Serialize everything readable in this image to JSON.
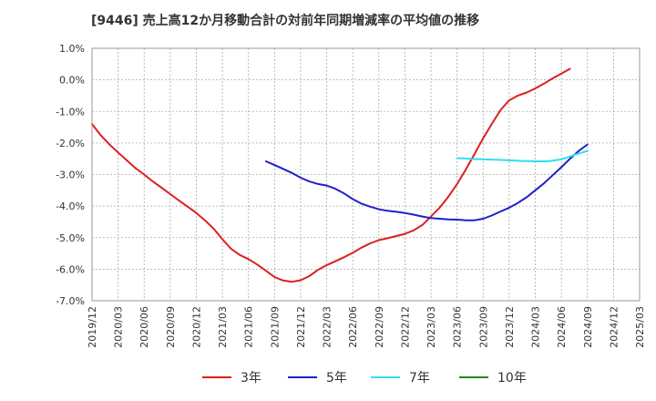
{
  "chart_data": {
    "type": "line",
    "title": "[9446]  売上高12か月移動合計の対前年同期増減率の平均値の推移",
    "xlabel": "",
    "ylabel": "",
    "ylim": [
      -7.0,
      1.0
    ],
    "yticks": [
      "1.0%",
      "0.0%",
      "-1.0%",
      "-2.0%",
      "-3.0%",
      "-4.0%",
      "-5.0%",
      "-6.0%",
      "-7.0%"
    ],
    "ytick_values": [
      1,
      0,
      -1,
      -2,
      -3,
      -4,
      -5,
      -6,
      -7
    ],
    "x_categories": [
      "2019/12",
      "2020/03",
      "2020/06",
      "2020/09",
      "2020/12",
      "2021/03",
      "2021/06",
      "2021/09",
      "2021/12",
      "2022/03",
      "2022/06",
      "2022/09",
      "2022/12",
      "2023/03",
      "2023/06",
      "2023/09",
      "2023/12",
      "2024/03",
      "2024/06",
      "2024/09",
      "2024/12",
      "2025/03"
    ],
    "grid": true,
    "legend_position": "bottom",
    "series": [
      {
        "name": "3年",
        "color": "#dd1f1f",
        "points": [
          [
            0,
            -1.4
          ],
          [
            0.33,
            -1.75
          ],
          [
            0.67,
            -2.05
          ],
          [
            1,
            -2.3
          ],
          [
            1.33,
            -2.55
          ],
          [
            1.67,
            -2.8
          ],
          [
            2,
            -3.0
          ],
          [
            2.33,
            -3.22
          ],
          [
            2.67,
            -3.42
          ],
          [
            3,
            -3.62
          ],
          [
            3.33,
            -3.82
          ],
          [
            3.67,
            -4.02
          ],
          [
            4,
            -4.22
          ],
          [
            4.33,
            -4.45
          ],
          [
            4.67,
            -4.72
          ],
          [
            5,
            -5.05
          ],
          [
            5.33,
            -5.35
          ],
          [
            5.67,
            -5.55
          ],
          [
            6,
            -5.68
          ],
          [
            6.33,
            -5.85
          ],
          [
            6.67,
            -6.05
          ],
          [
            7,
            -6.25
          ],
          [
            7.33,
            -6.36
          ],
          [
            7.67,
            -6.4
          ],
          [
            8,
            -6.35
          ],
          [
            8.33,
            -6.22
          ],
          [
            8.67,
            -6.02
          ],
          [
            9,
            -5.87
          ],
          [
            9.33,
            -5.75
          ],
          [
            9.67,
            -5.62
          ],
          [
            10,
            -5.48
          ],
          [
            10.33,
            -5.32
          ],
          [
            10.67,
            -5.18
          ],
          [
            11,
            -5.08
          ],
          [
            11.33,
            -5.02
          ],
          [
            11.67,
            -4.95
          ],
          [
            12,
            -4.88
          ],
          [
            12.33,
            -4.77
          ],
          [
            12.67,
            -4.6
          ],
          [
            13,
            -4.33
          ],
          [
            13.33,
            -4.05
          ],
          [
            13.67,
            -3.7
          ],
          [
            14,
            -3.3
          ],
          [
            14.33,
            -2.85
          ],
          [
            14.67,
            -2.35
          ],
          [
            15,
            -1.85
          ],
          [
            15.33,
            -1.4
          ],
          [
            15.67,
            -0.95
          ],
          [
            16,
            -0.65
          ],
          [
            16.33,
            -0.5
          ],
          [
            16.67,
            -0.4
          ],
          [
            17,
            -0.27
          ],
          [
            17.33,
            -0.12
          ],
          [
            17.67,
            0.05
          ],
          [
            18,
            0.2
          ],
          [
            18.33,
            0.35
          ]
        ]
      },
      {
        "name": "5年",
        "color": "#1f1fcc",
        "points": [
          [
            6.67,
            -2.58
          ],
          [
            7,
            -2.7
          ],
          [
            7.33,
            -2.82
          ],
          [
            7.67,
            -2.95
          ],
          [
            8,
            -3.1
          ],
          [
            8.33,
            -3.22
          ],
          [
            8.67,
            -3.3
          ],
          [
            9,
            -3.35
          ],
          [
            9.33,
            -3.45
          ],
          [
            9.67,
            -3.6
          ],
          [
            10,
            -3.78
          ],
          [
            10.33,
            -3.92
          ],
          [
            10.67,
            -4.02
          ],
          [
            11,
            -4.1
          ],
          [
            11.33,
            -4.15
          ],
          [
            11.67,
            -4.18
          ],
          [
            12,
            -4.22
          ],
          [
            12.33,
            -4.27
          ],
          [
            12.67,
            -4.33
          ],
          [
            13,
            -4.38
          ],
          [
            13.33,
            -4.4
          ],
          [
            13.67,
            -4.42
          ],
          [
            14,
            -4.43
          ],
          [
            14.33,
            -4.45
          ],
          [
            14.67,
            -4.45
          ],
          [
            15,
            -4.4
          ],
          [
            15.33,
            -4.3
          ],
          [
            15.67,
            -4.17
          ],
          [
            16,
            -4.05
          ],
          [
            16.33,
            -3.9
          ],
          [
            16.67,
            -3.72
          ],
          [
            17,
            -3.5
          ],
          [
            17.33,
            -3.28
          ],
          [
            17.67,
            -3.02
          ],
          [
            18,
            -2.77
          ],
          [
            18.33,
            -2.5
          ],
          [
            18.67,
            -2.25
          ],
          [
            19,
            -2.05
          ]
        ]
      },
      {
        "name": "7年",
        "color": "#33ddee",
        "points": [
          [
            14,
            -2.48
          ],
          [
            14.5,
            -2.5
          ],
          [
            15,
            -2.52
          ],
          [
            15.5,
            -2.53
          ],
          [
            16,
            -2.55
          ],
          [
            16.5,
            -2.57
          ],
          [
            17,
            -2.58
          ],
          [
            17.5,
            -2.58
          ],
          [
            18,
            -2.52
          ],
          [
            18.5,
            -2.38
          ],
          [
            19,
            -2.25
          ]
        ]
      },
      {
        "name": "10年",
        "color": "#228822",
        "points": []
      }
    ]
  }
}
